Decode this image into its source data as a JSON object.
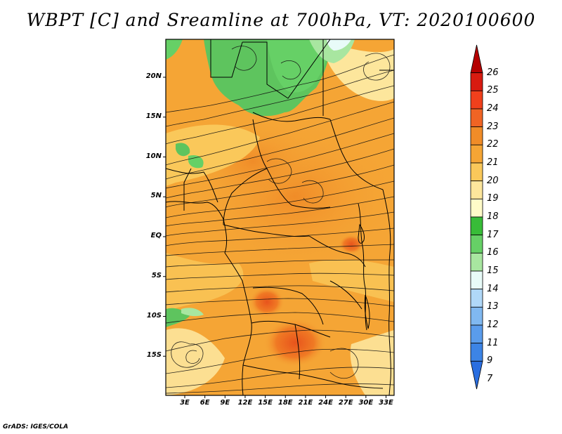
{
  "title": "WBPT [C] and Sreamline at 700hPa, VT: 2020100600",
  "lat_labels": [
    "20N",
    "15N",
    "10N",
    "5N",
    "EQ",
    "5S",
    "10S",
    "15S"
  ],
  "lat_values": [
    20,
    15,
    10,
    5,
    0,
    -5,
    -10,
    -15
  ],
  "lon_labels": [
    "3E",
    "6E",
    "9E",
    "12E",
    "15E",
    "18E",
    "21E",
    "24E",
    "27E",
    "30E",
    "33E"
  ],
  "lon_values": [
    3,
    6,
    9,
    12,
    15,
    18,
    21,
    24,
    27,
    30,
    33
  ],
  "colorbar": {
    "labels": [
      "26",
      "25",
      "24",
      "23",
      "22",
      "21",
      "20",
      "19",
      "18",
      "17",
      "16",
      "15",
      "14",
      "13",
      "12",
      "11",
      "9",
      "7"
    ],
    "colors": [
      "#b40000",
      "#d81b10",
      "#f0401c",
      "#f06424",
      "#f08c28",
      "#f5a535",
      "#fac85a",
      "#fde69c",
      "#fffbc8",
      "#38bc38",
      "#66d066",
      "#a8e6a0",
      "#e8fbf8",
      "#b0d8f8",
      "#80b8f0",
      "#5a9cec",
      "#3c84e6",
      "#2a6ee0"
    ]
  },
  "footer": "GrADS: IGES/COLA"
}
